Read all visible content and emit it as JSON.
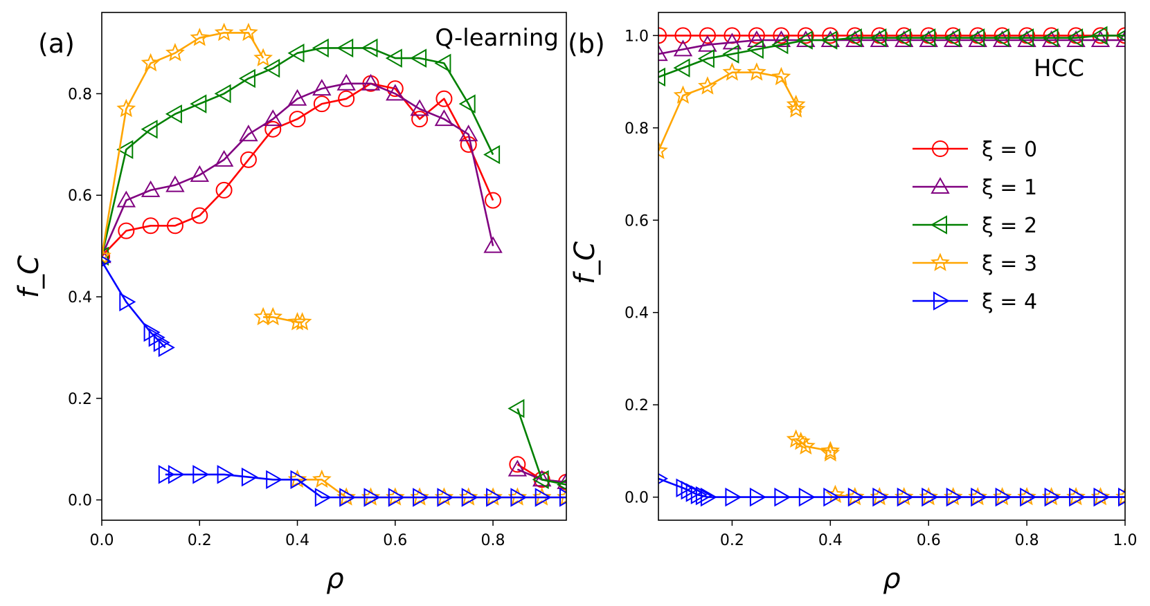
{
  "chart_data": [
    {
      "type": "line",
      "panel_label": "(a)",
      "title": "Q-learning",
      "xlabel": "ρ",
      "ylabel": "f_C",
      "xlim": [
        0.0,
        0.95
      ],
      "ylim": [
        -0.04,
        0.96
      ],
      "xticks": [
        "0.0",
        "0.2",
        "0.4",
        "0.6",
        "0.8"
      ],
      "yticks": [
        "0.0",
        "0.2",
        "0.4",
        "0.6",
        "0.8"
      ],
      "grid": false,
      "series": [
        {
          "name": "ξ = 0",
          "color": "#ff0000",
          "marker": "circle",
          "segments": [
            [
              [
                0.0,
                0.48
              ],
              [
                0.05,
                0.53
              ],
              [
                0.1,
                0.54
              ],
              [
                0.15,
                0.54
              ],
              [
                0.2,
                0.56
              ],
              [
                0.25,
                0.61
              ],
              [
                0.3,
                0.67
              ],
              [
                0.35,
                0.73
              ],
              [
                0.4,
                0.75
              ],
              [
                0.45,
                0.78
              ],
              [
                0.5,
                0.79
              ],
              [
                0.55,
                0.82
              ],
              [
                0.6,
                0.81
              ],
              [
                0.65,
                0.75
              ],
              [
                0.7,
                0.79
              ],
              [
                0.75,
                0.7
              ],
              [
                0.8,
                0.59
              ]
            ],
            [
              [
                0.85,
                0.07
              ],
              [
                0.9,
                0.04
              ],
              [
                0.95,
                0.035
              ]
            ]
          ]
        },
        {
          "name": "ξ = 1",
          "color": "#800080",
          "marker": "triangle-up",
          "segments": [
            [
              [
                0.0,
                0.48
              ],
              [
                0.05,
                0.59
              ],
              [
                0.1,
                0.61
              ],
              [
                0.15,
                0.62
              ],
              [
                0.2,
                0.64
              ],
              [
                0.25,
                0.67
              ],
              [
                0.3,
                0.72
              ],
              [
                0.35,
                0.75
              ],
              [
                0.4,
                0.79
              ],
              [
                0.45,
                0.81
              ],
              [
                0.5,
                0.82
              ],
              [
                0.55,
                0.82
              ],
              [
                0.6,
                0.8
              ],
              [
                0.65,
                0.77
              ],
              [
                0.7,
                0.75
              ],
              [
                0.75,
                0.72
              ],
              [
                0.8,
                0.5
              ]
            ],
            [
              [
                0.85,
                0.06
              ],
              [
                0.9,
                0.04
              ],
              [
                0.95,
                0.035
              ]
            ]
          ]
        },
        {
          "name": "ξ = 2",
          "color": "#008000",
          "marker": "triangle-left",
          "segments": [
            [
              [
                0.0,
                0.48
              ],
              [
                0.05,
                0.69
              ],
              [
                0.1,
                0.73
              ],
              [
                0.15,
                0.76
              ],
              [
                0.2,
                0.78
              ],
              [
                0.25,
                0.8
              ],
              [
                0.3,
                0.83
              ],
              [
                0.35,
                0.85
              ],
              [
                0.4,
                0.88
              ],
              [
                0.45,
                0.89
              ],
              [
                0.5,
                0.89
              ],
              [
                0.55,
                0.89
              ],
              [
                0.6,
                0.87
              ],
              [
                0.65,
                0.87
              ],
              [
                0.7,
                0.86
              ],
              [
                0.75,
                0.78
              ],
              [
                0.8,
                0.68
              ]
            ],
            [
              [
                0.85,
                0.18
              ],
              [
                0.9,
                0.04
              ],
              [
                0.95,
                0.03
              ]
            ]
          ]
        },
        {
          "name": "ξ = 3",
          "color": "#ffa500",
          "marker": "star",
          "segments": [
            [
              [
                0.0,
                0.48
              ],
              [
                0.05,
                0.77
              ],
              [
                0.1,
                0.86
              ],
              [
                0.15,
                0.88
              ],
              [
                0.2,
                0.91
              ],
              [
                0.25,
                0.92
              ],
              [
                0.3,
                0.92
              ],
              [
                0.33,
                0.87
              ]
            ],
            [
              [
                0.33,
                0.36
              ],
              [
                0.35,
                0.36
              ],
              [
                0.4,
                0.35
              ],
              [
                0.41,
                0.35
              ]
            ],
            [
              [
                0.4,
                0.04
              ],
              [
                0.45,
                0.04
              ],
              [
                0.5,
                0.005
              ],
              [
                0.55,
                0.005
              ],
              [
                0.6,
                0.005
              ],
              [
                0.65,
                0.005
              ],
              [
                0.7,
                0.005
              ],
              [
                0.75,
                0.005
              ],
              [
                0.8,
                0.005
              ],
              [
                0.85,
                0.005
              ],
              [
                0.9,
                0.005
              ],
              [
                0.95,
                0.005
              ]
            ]
          ]
        },
        {
          "name": "ξ = 4",
          "color": "#0000ff",
          "marker": "triangle-right",
          "segments": [
            [
              [
                0.0,
                0.47
              ],
              [
                0.05,
                0.39
              ],
              [
                0.1,
                0.33
              ],
              [
                0.11,
                0.32
              ],
              [
                0.12,
                0.31
              ],
              [
                0.13,
                0.3
              ]
            ],
            [
              [
                0.13,
                0.05
              ],
              [
                0.15,
                0.05
              ],
              [
                0.2,
                0.05
              ],
              [
                0.25,
                0.05
              ],
              [
                0.3,
                0.045
              ],
              [
                0.35,
                0.04
              ],
              [
                0.4,
                0.04
              ],
              [
                0.45,
                0.005
              ],
              [
                0.5,
                0.005
              ],
              [
                0.55,
                0.005
              ],
              [
                0.6,
                0.005
              ],
              [
                0.65,
                0.005
              ],
              [
                0.7,
                0.005
              ],
              [
                0.75,
                0.005
              ],
              [
                0.8,
                0.005
              ],
              [
                0.85,
                0.005
              ],
              [
                0.9,
                0.005
              ],
              [
                0.95,
                0.005
              ]
            ]
          ]
        }
      ]
    },
    {
      "type": "line",
      "panel_label": "(b)",
      "title": "HCC",
      "xlabel": "ρ",
      "ylabel": "f_C",
      "xlim": [
        0.05,
        1.0
      ],
      "ylim": [
        -0.05,
        1.05
      ],
      "xticks": [
        "0.2",
        "0.4",
        "0.6",
        "0.8",
        "1.0"
      ],
      "yticks": [
        "0.0",
        "0.2",
        "0.4",
        "0.6",
        "0.8",
        "1.0"
      ],
      "grid": false,
      "legend_position": "right",
      "series": [
        {
          "name": "ξ = 0",
          "color": "#ff0000",
          "marker": "circle",
          "segments": [
            [
              [
                0.05,
                1.0
              ],
              [
                0.1,
                1.0
              ],
              [
                0.15,
                1.0
              ],
              [
                0.2,
                1.0
              ],
              [
                0.25,
                1.0
              ],
              [
                0.3,
                1.0
              ],
              [
                0.35,
                1.0
              ],
              [
                0.4,
                1.0
              ],
              [
                0.45,
                1.0
              ],
              [
                0.5,
                1.0
              ],
              [
                0.55,
                1.0
              ],
              [
                0.6,
                1.0
              ],
              [
                0.65,
                1.0
              ],
              [
                0.7,
                1.0
              ],
              [
                0.75,
                1.0
              ],
              [
                0.8,
                1.0
              ],
              [
                0.85,
                1.0
              ],
              [
                0.9,
                1.0
              ],
              [
                0.95,
                1.0
              ],
              [
                1.0,
                1.0
              ]
            ]
          ]
        },
        {
          "name": "ξ = 1",
          "color": "#800080",
          "marker": "triangle-up",
          "segments": [
            [
              [
                0.05,
                0.96
              ],
              [
                0.1,
                0.97
              ],
              [
                0.15,
                0.98
              ],
              [
                0.2,
                0.985
              ],
              [
                0.25,
                0.99
              ],
              [
                0.3,
                0.99
              ],
              [
                0.35,
                0.99
              ],
              [
                0.4,
                0.99
              ],
              [
                0.45,
                0.99
              ],
              [
                0.5,
                0.99
              ],
              [
                0.55,
                0.99
              ],
              [
                0.6,
                0.99
              ],
              [
                0.65,
                0.99
              ],
              [
                0.7,
                0.99
              ],
              [
                0.75,
                0.99
              ],
              [
                0.8,
                0.99
              ],
              [
                0.85,
                0.99
              ],
              [
                0.9,
                0.99
              ],
              [
                0.95,
                0.99
              ],
              [
                1.0,
                0.99
              ]
            ]
          ]
        },
        {
          "name": "ξ = 2",
          "color": "#008000",
          "marker": "triangle-left",
          "segments": [
            [
              [
                0.05,
                0.91
              ],
              [
                0.1,
                0.93
              ],
              [
                0.15,
                0.95
              ],
              [
                0.2,
                0.96
              ],
              [
                0.25,
                0.97
              ],
              [
                0.3,
                0.98
              ],
              [
                0.35,
                0.99
              ],
              [
                0.4,
                0.99
              ],
              [
                0.45,
                0.995
              ],
              [
                0.5,
                0.995
              ],
              [
                0.55,
                0.995
              ],
              [
                0.6,
                0.995
              ],
              [
                0.65,
                0.995
              ],
              [
                0.7,
                0.995
              ],
              [
                0.75,
                0.995
              ],
              [
                0.8,
                0.995
              ],
              [
                0.85,
                0.995
              ],
              [
                0.9,
                0.995
              ],
              [
                0.95,
                1.0
              ],
              [
                1.0,
                1.0
              ]
            ]
          ]
        },
        {
          "name": "ξ = 3",
          "color": "#ffa500",
          "marker": "star",
          "segments": [
            [
              [
                0.05,
                0.75
              ],
              [
                0.1,
                0.87
              ],
              [
                0.15,
                0.89
              ],
              [
                0.2,
                0.92
              ],
              [
                0.25,
                0.92
              ],
              [
                0.3,
                0.91
              ],
              [
                0.33,
                0.85
              ],
              [
                0.33,
                0.84
              ]
            ],
            [
              [
                0.33,
                0.125
              ],
              [
                0.34,
                0.12
              ],
              [
                0.35,
                0.11
              ],
              [
                0.4,
                0.1
              ],
              [
                0.4,
                0.095
              ]
            ],
            [
              [
                0.41,
                0.005
              ],
              [
                0.45,
                0.0
              ],
              [
                0.5,
                0.0
              ],
              [
                0.55,
                0.0
              ],
              [
                0.6,
                0.0
              ],
              [
                0.65,
                0.0
              ],
              [
                0.7,
                0.0
              ],
              [
                0.75,
                0.0
              ],
              [
                0.8,
                0.0
              ],
              [
                0.85,
                0.0
              ],
              [
                0.9,
                0.0
              ],
              [
                0.95,
                0.0
              ],
              [
                1.0,
                0.0
              ]
            ]
          ]
        },
        {
          "name": "ξ = 4",
          "color": "#0000ff",
          "marker": "triangle-right",
          "segments": [
            [
              [
                0.05,
                0.04
              ],
              [
                0.1,
                0.02
              ],
              [
                0.11,
                0.015
              ],
              [
                0.12,
                0.01
              ],
              [
                0.13,
                0.005
              ],
              [
                0.14,
                0.003
              ],
              [
                0.15,
                0.0
              ],
              [
                0.2,
                0.0
              ],
              [
                0.25,
                0.0
              ],
              [
                0.3,
                0.0
              ],
              [
                0.35,
                0.0
              ],
              [
                0.4,
                0.0
              ],
              [
                0.45,
                0.0
              ],
              [
                0.5,
                0.0
              ],
              [
                0.55,
                0.0
              ],
              [
                0.6,
                0.0
              ],
              [
                0.65,
                0.0
              ],
              [
                0.7,
                0.0
              ],
              [
                0.75,
                0.0
              ],
              [
                0.8,
                0.0
              ],
              [
                0.85,
                0.0
              ],
              [
                0.9,
                0.0
              ],
              [
                0.95,
                0.0
              ],
              [
                1.0,
                0.0
              ]
            ]
          ]
        }
      ]
    }
  ]
}
